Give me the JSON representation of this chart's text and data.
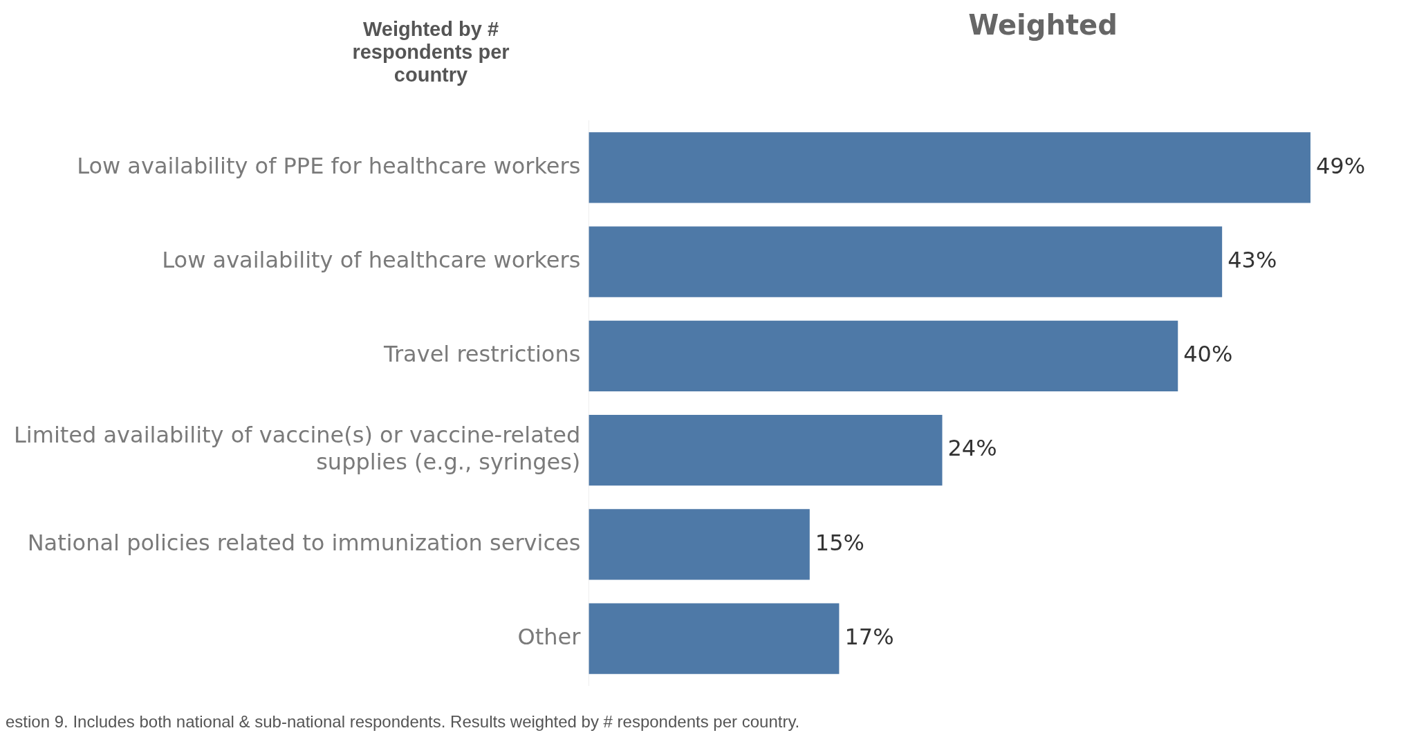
{
  "chart_data": {
    "type": "bar",
    "orientation": "horizontal",
    "title": "Weighted",
    "subtitle": "Weighted by # respondents per country",
    "categories": [
      "Low availability of PPE for healthcare workers",
      "Low availability of healthcare workers",
      "Travel restrictions",
      "Limited availability of vaccine(s) or vaccine-related supplies (e.g., syringes)",
      "National policies related to immunization services",
      "Other"
    ],
    "values": [
      49,
      43,
      40,
      24,
      15,
      17
    ],
    "color": "#4e79a7",
    "tick_labels": "y",
    "data_labels": true,
    "value_labels": [
      "49%",
      "43%",
      "40%",
      "24%",
      "15%",
      "17%"
    ],
    "legend": false,
    "annotations": [
      "estion 9. Includes both national & sub-national respondents. Results weighted by # respondents per country."
    ]
  }
}
